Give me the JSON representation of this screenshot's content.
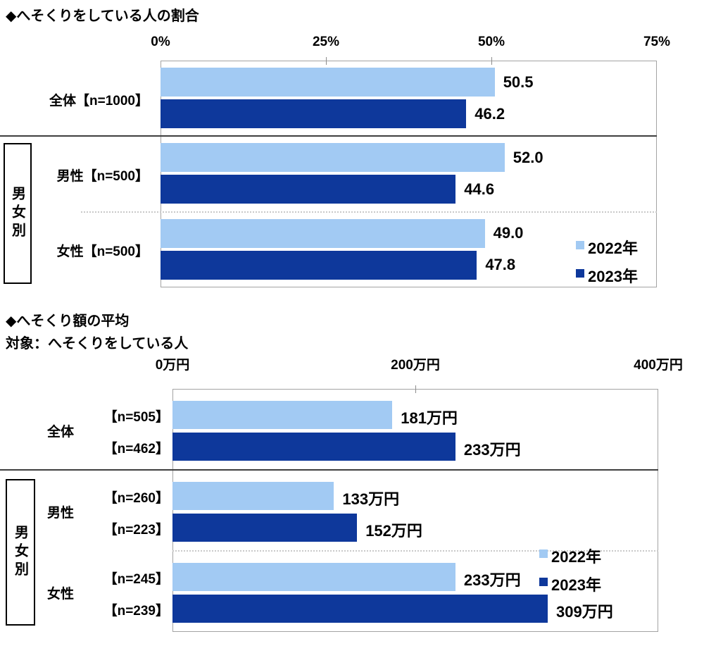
{
  "colors": {
    "series_2022": "#A2CAF3",
    "series_2023": "#0E389B",
    "plot_border": "#A3A3A3",
    "solid_separator": "#3F3F3F",
    "dotted_separator": "#C9C9C9",
    "text": "#000000"
  },
  "chart_data": [
    {
      "type": "bar",
      "orientation": "horizontal",
      "title": "◆へそくりをしている人の割合",
      "subtitle": "",
      "axis": {
        "unit": "%",
        "min": 0,
        "max": 75,
        "tick_labels": [
          "0%",
          "25%",
          "50%",
          "75%"
        ],
        "tick_values": [
          0,
          25,
          50,
          75
        ],
        "grid": "off"
      },
      "legend": [
        {
          "name": "2022年",
          "color_key": "series_2022"
        },
        {
          "name": "2023年",
          "color_key": "series_2023"
        }
      ],
      "legend_position": "right-inside",
      "side_label": "男女別",
      "groups": [
        {
          "label": "全体【n=1000】",
          "bars": [
            {
              "series": "2022年",
              "value": 50.5,
              "display": "50.5"
            },
            {
              "series": "2023年",
              "value": 46.2,
              "display": "46.2"
            }
          ]
        },
        {
          "label": "男性【n=500】",
          "bars": [
            {
              "series": "2022年",
              "value": 52.0,
              "display": "52.0"
            },
            {
              "series": "2023年",
              "value": 44.6,
              "display": "44.6"
            }
          ]
        },
        {
          "label": "女性【n=500】",
          "bars": [
            {
              "series": "2022年",
              "value": 49.0,
              "display": "49.0"
            },
            {
              "series": "2023年",
              "value": 47.8,
              "display": "47.8"
            }
          ]
        }
      ]
    },
    {
      "type": "bar",
      "orientation": "horizontal",
      "title": "◆へそくり額の平均",
      "subtitle": "対象：へそくりをしている人",
      "axis": {
        "unit": "万円",
        "min": 0,
        "max": 400,
        "tick_labels": [
          "0万円",
          "200万円",
          "400万円"
        ],
        "tick_values": [
          0,
          200,
          400
        ],
        "grid": "off"
      },
      "legend": [
        {
          "name": "2022年",
          "color_key": "series_2022"
        },
        {
          "name": "2023年",
          "color_key": "series_2023"
        }
      ],
      "legend_position": "right-inside",
      "side_label": "男女別",
      "groups": [
        {
          "label": "全体",
          "bars": [
            {
              "series": "2022年",
              "n_label": "【n=505】",
              "value": 181,
              "display": "181万円"
            },
            {
              "series": "2023年",
              "n_label": "【n=462】",
              "value": 233,
              "display": "233万円"
            }
          ]
        },
        {
          "label": "男性",
          "bars": [
            {
              "series": "2022年",
              "n_label": "【n=260】",
              "value": 133,
              "display": "133万円"
            },
            {
              "series": "2023年",
              "n_label": "【n=223】",
              "value": 152,
              "display": "152万円"
            }
          ]
        },
        {
          "label": "女性",
          "bars": [
            {
              "series": "2022年",
              "n_label": "【n=245】",
              "value": 233,
              "display": "233万円"
            },
            {
              "series": "2023年",
              "n_label": "【n=239】",
              "value": 309,
              "display": "309万円"
            }
          ]
        }
      ]
    }
  ]
}
